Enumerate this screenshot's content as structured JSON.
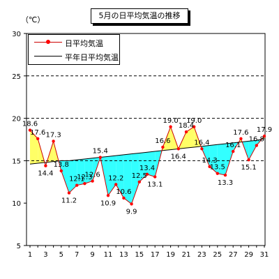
{
  "chart_data": {
    "type": "line",
    "title": "5月の日平均気温の推移",
    "ylabel": "（℃）",
    "xlim": [
      1,
      31
    ],
    "ylim": [
      5,
      30
    ],
    "x_ticks": [
      1,
      3,
      5,
      7,
      9,
      11,
      13,
      15,
      17,
      19,
      21,
      23,
      25,
      27,
      29,
      31
    ],
    "y_ticks": [
      5,
      10,
      15,
      20,
      25,
      30
    ],
    "grid": "horizontal dashed at 15, 20, 25",
    "legend_position": "top-left",
    "series": [
      {
        "name": "日平均気温",
        "color": "#ff0000",
        "x": [
          1,
          2,
          3,
          4,
          5,
          6,
          7,
          8,
          9,
          10,
          11,
          12,
          13,
          14,
          15,
          16,
          17,
          18,
          19,
          20,
          21,
          22,
          23,
          24,
          25,
          26,
          27,
          28,
          29,
          30,
          31
        ],
        "values": [
          18.6,
          17.6,
          14.4,
          17.3,
          13.8,
          11.2,
          12.1,
          12.3,
          12.6,
          15.4,
          10.9,
          12.2,
          10.6,
          9.9,
          12.5,
          13.4,
          13.1,
          16.6,
          19.0,
          16.4,
          18.4,
          19.0,
          16.4,
          14.3,
          13.5,
          13.3,
          16.1,
          17.6,
          15.1,
          16.8,
          17.9
        ]
      },
      {
        "name": "平年日平均気温",
        "color": "#000000",
        "x": [
          1,
          2,
          3,
          4,
          5,
          6,
          7,
          8,
          9,
          10,
          11,
          12,
          13,
          14,
          15,
          16,
          17,
          18,
          19,
          20,
          21,
          22,
          23,
          24,
          25,
          26,
          27,
          28,
          29,
          30,
          31
        ],
        "values": [
          14.6,
          14.7,
          14.8,
          14.9,
          15.0,
          15.0,
          15.1,
          15.2,
          15.3,
          15.4,
          15.5,
          15.6,
          15.7,
          15.8,
          15.9,
          16.0,
          16.1,
          16.2,
          16.3,
          16.4,
          16.5,
          16.6,
          16.7,
          16.8,
          16.9,
          17.0,
          17.1,
          17.2,
          17.3,
          17.4,
          17.6
        ]
      }
    ],
    "fill_above_color": "#ffff66",
    "fill_below_color": "#33ffff"
  }
}
